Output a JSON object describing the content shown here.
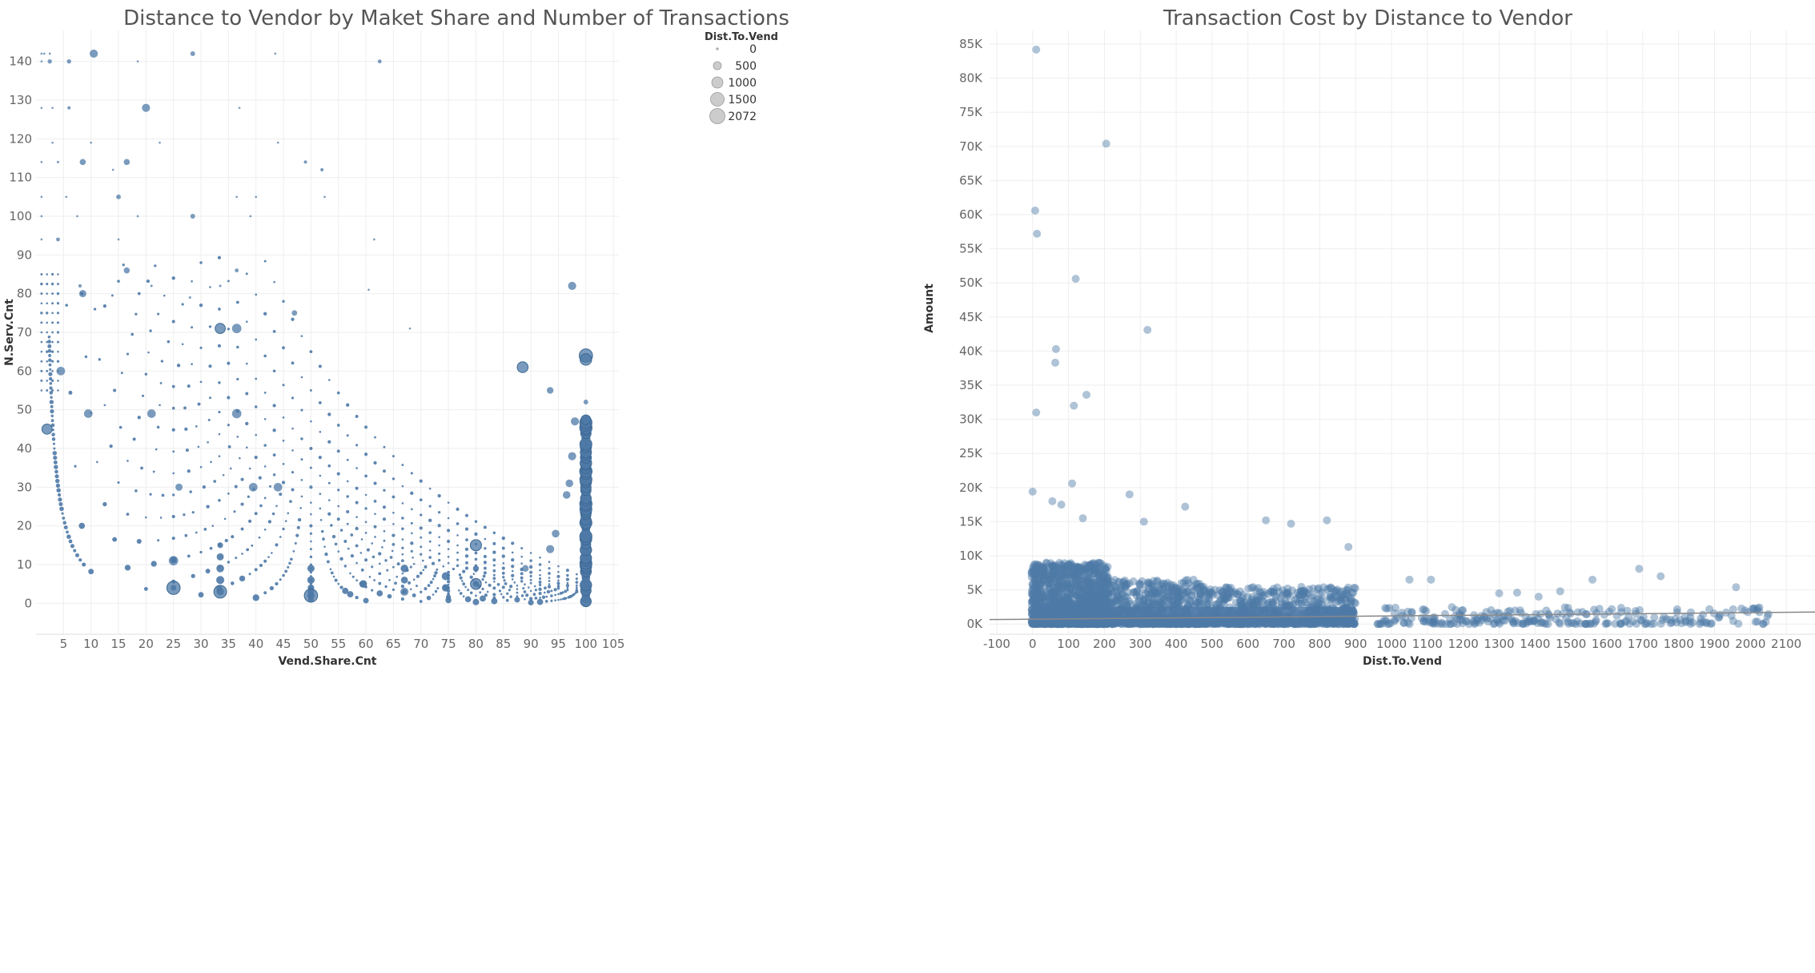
{
  "chart_data": [
    {
      "type": "scatter",
      "title": "Distance to Vendor by Maket Share and Number of Transactions",
      "xlabel": "Vend.Share.Cnt",
      "ylabel": "N.Serv.Cnt",
      "xlim": [
        0,
        106
      ],
      "ylim": [
        -8,
        148
      ],
      "xticks": [
        5,
        10,
        15,
        20,
        25,
        30,
        35,
        40,
        45,
        50,
        55,
        60,
        65,
        70,
        75,
        80,
        85,
        90,
        95,
        100,
        105
      ],
      "yticks": [
        0,
        10,
        20,
        30,
        40,
        50,
        60,
        70,
        80,
        90,
        100,
        110,
        120,
        130,
        140
      ],
      "grid": true,
      "color": "#4e79a7",
      "size_legend": {
        "title": "Dist.To.Vend",
        "placement": "top-right",
        "entries": [
          {
            "label": "0",
            "value": 0
          },
          {
            "label": "500",
            "value": 500
          },
          {
            "label": "1000",
            "value": 1000
          },
          {
            "label": "1500",
            "value": 1500
          },
          {
            "label": "2072",
            "value": 2072
          }
        ]
      },
      "points": [
        {
          "x": 1,
          "y": 142,
          "s": 60
        },
        {
          "x": 1.5,
          "y": 142,
          "s": 60
        },
        {
          "x": 2.5,
          "y": 142,
          "s": 60
        },
        {
          "x": 10.5,
          "y": 142,
          "s": 900
        },
        {
          "x": 28.5,
          "y": 142,
          "s": 300
        },
        {
          "x": 43.5,
          "y": 142,
          "s": 60
        },
        {
          "x": 1,
          "y": 140,
          "s": 60
        },
        {
          "x": 2.5,
          "y": 140,
          "s": 250
        },
        {
          "x": 6,
          "y": 140,
          "s": 250
        },
        {
          "x": 18.5,
          "y": 140,
          "s": 60
        },
        {
          "x": 62.5,
          "y": 140,
          "s": 200
        },
        {
          "x": 1,
          "y": 128,
          "s": 60
        },
        {
          "x": 3,
          "y": 128,
          "s": 60
        },
        {
          "x": 6,
          "y": 128,
          "s": 150
        },
        {
          "x": 20,
          "y": 128,
          "s": 900
        },
        {
          "x": 37,
          "y": 128,
          "s": 60
        },
        {
          "x": 3,
          "y": 119,
          "s": 60
        },
        {
          "x": 10,
          "y": 119,
          "s": 60
        },
        {
          "x": 22.5,
          "y": 119,
          "s": 60
        },
        {
          "x": 44,
          "y": 119,
          "s": 60
        },
        {
          "x": 1,
          "y": 114,
          "s": 60
        },
        {
          "x": 4,
          "y": 114,
          "s": 80
        },
        {
          "x": 8.5,
          "y": 114,
          "s": 500
        },
        {
          "x": 16.5,
          "y": 114,
          "s": 500
        },
        {
          "x": 49,
          "y": 114,
          "s": 150
        },
        {
          "x": 14,
          "y": 112,
          "s": 60
        },
        {
          "x": 52,
          "y": 112,
          "s": 150
        },
        {
          "x": 1,
          "y": 105,
          "s": 60
        },
        {
          "x": 5.5,
          "y": 105,
          "s": 60
        },
        {
          "x": 15,
          "y": 105,
          "s": 300
        },
        {
          "x": 36.5,
          "y": 105,
          "s": 60
        },
        {
          "x": 40,
          "y": 105,
          "s": 60
        },
        {
          "x": 52.5,
          "y": 105,
          "s": 60
        },
        {
          "x": 1,
          "y": 100,
          "s": 60
        },
        {
          "x": 7.5,
          "y": 100,
          "s": 60
        },
        {
          "x": 18.5,
          "y": 100,
          "s": 60
        },
        {
          "x": 28.5,
          "y": 100,
          "s": 300
        },
        {
          "x": 39,
          "y": 100,
          "s": 60
        },
        {
          "x": 1,
          "y": 94,
          "s": 60
        },
        {
          "x": 4,
          "y": 94,
          "s": 200
        },
        {
          "x": 15,
          "y": 94,
          "s": 60
        },
        {
          "x": 61.5,
          "y": 94,
          "s": 60
        },
        {
          "x": 16.5,
          "y": 86,
          "s": 500
        },
        {
          "x": 36.5,
          "y": 86,
          "s": 200
        },
        {
          "x": 8,
          "y": 82,
          "s": 150
        },
        {
          "x": 21,
          "y": 82,
          "s": 80
        },
        {
          "x": 33.5,
          "y": 82,
          "s": 80
        },
        {
          "x": 97.5,
          "y": 82,
          "s": 900
        },
        {
          "x": 60.5,
          "y": 81,
          "s": 60
        },
        {
          "x": 8.5,
          "y": 80,
          "s": 700
        },
        {
          "x": 28,
          "y": 79,
          "s": 80
        },
        {
          "x": 47,
          "y": 75,
          "s": 400
        },
        {
          "x": 33.5,
          "y": 71,
          "s": 1400
        },
        {
          "x": 36.5,
          "y": 71,
          "s": 1200
        },
        {
          "x": 68,
          "y": 71,
          "s": 60
        },
        {
          "x": 88.5,
          "y": 61,
          "s": 1600
        },
        {
          "x": 100,
          "y": 64,
          "s": 2400
        },
        {
          "x": 100,
          "y": 63,
          "s": 1800
        },
        {
          "x": 93.5,
          "y": 55,
          "s": 600
        },
        {
          "x": 100,
          "y": 52,
          "s": 300
        },
        {
          "x": 2,
          "y": 45,
          "s": 1400
        },
        {
          "x": 4.5,
          "y": 60,
          "s": 1000
        },
        {
          "x": 9.5,
          "y": 49,
          "s": 1000
        },
        {
          "x": 21,
          "y": 49,
          "s": 1000
        },
        {
          "x": 36.5,
          "y": 49,
          "s": 1200
        },
        {
          "x": 26,
          "y": 30,
          "s": 700
        },
        {
          "x": 39.5,
          "y": 30,
          "s": 1000
        },
        {
          "x": 44,
          "y": 30,
          "s": 1000
        },
        {
          "x": 25,
          "y": 11,
          "s": 1200
        },
        {
          "x": 25,
          "y": 4,
          "s": 2400
        },
        {
          "x": 33.5,
          "y": 3,
          "s": 2200
        },
        {
          "x": 50,
          "y": 2,
          "s": 2400
        },
        {
          "x": 59.5,
          "y": 5,
          "s": 800
        },
        {
          "x": 67,
          "y": 3,
          "s": 900
        },
        {
          "x": 74.5,
          "y": 4,
          "s": 800
        },
        {
          "x": 80,
          "y": 5,
          "s": 1600
        },
        {
          "x": 80,
          "y": 15,
          "s": 1700
        },
        {
          "x": 89,
          "y": 9,
          "s": 600
        },
        {
          "x": 97.5,
          "y": 38,
          "s": 900
        },
        {
          "x": 98,
          "y": 47,
          "s": 900
        },
        {
          "x": 97,
          "y": 31,
          "s": 800
        },
        {
          "x": 96.5,
          "y": 28,
          "s": 800
        },
        {
          "x": 94.5,
          "y": 18,
          "s": 800
        },
        {
          "x": 93.5,
          "y": 14,
          "s": 900
        }
      ],
      "arc_counts": [
        1,
        2,
        3,
        4,
        5,
        6,
        7,
        8,
        9,
        10,
        12,
        14,
        16,
        18,
        20,
        23,
        26,
        30,
        35,
        40,
        47,
        55,
        65
      ]
    },
    {
      "type": "scatter",
      "title": "Transaction Cost by Distance to Vendor",
      "xlabel": "Dist.To.Vend",
      "ylabel": "Amount",
      "xlim": [
        -120,
        2180
      ],
      "ylim": [
        -1500,
        87000
      ],
      "xticks": [
        -100,
        0,
        100,
        200,
        300,
        400,
        500,
        600,
        700,
        800,
        900,
        1000,
        1100,
        1200,
        1300,
        1400,
        1500,
        1600,
        1700,
        1800,
        1900,
        2000,
        2100
      ],
      "yticks": [
        0,
        5000,
        10000,
        15000,
        20000,
        25000,
        30000,
        35000,
        40000,
        45000,
        50000,
        55000,
        60000,
        65000,
        70000,
        75000,
        80000,
        85000
      ],
      "ytick_labels": [
        "0K",
        "5K",
        "10K",
        "15K",
        "20K",
        "25K",
        "30K",
        "35K",
        "40K",
        "45K",
        "50K",
        "55K",
        "60K",
        "65K",
        "70K",
        "75K",
        "80K",
        "85K"
      ],
      "grid": true,
      "color": "#4e79a7",
      "trend_line": {
        "x": [
          -120,
          2180
        ],
        "y": [
          650,
          1750
        ],
        "color": "#888888"
      },
      "outliers": [
        {
          "x": 10,
          "y": 84200
        },
        {
          "x": 205,
          "y": 70400
        },
        {
          "x": 7,
          "y": 60600
        },
        {
          "x": 12,
          "y": 57200
        },
        {
          "x": 120,
          "y": 50600
        },
        {
          "x": 320,
          "y": 43100
        },
        {
          "x": 65,
          "y": 40300
        },
        {
          "x": 63,
          "y": 38300
        },
        {
          "x": 150,
          "y": 33600
        },
        {
          "x": 115,
          "y": 32000
        },
        {
          "x": 10,
          "y": 31000
        },
        {
          "x": 0,
          "y": 19400
        },
        {
          "x": 110,
          "y": 20600
        },
        {
          "x": 270,
          "y": 19000
        },
        {
          "x": 425,
          "y": 17200
        },
        {
          "x": 55,
          "y": 18000
        },
        {
          "x": 80,
          "y": 17500
        },
        {
          "x": 140,
          "y": 15500
        },
        {
          "x": 310,
          "y": 15000
        },
        {
          "x": 650,
          "y": 15200
        },
        {
          "x": 720,
          "y": 14700
        },
        {
          "x": 820,
          "y": 15200
        },
        {
          "x": 880,
          "y": 11300
        },
        {
          "x": 1050,
          "y": 6500
        },
        {
          "x": 1110,
          "y": 6500
        },
        {
          "x": 1350,
          "y": 4600
        },
        {
          "x": 1410,
          "y": 4000
        },
        {
          "x": 1470,
          "y": 4800
        },
        {
          "x": 1560,
          "y": 6500
        },
        {
          "x": 1690,
          "y": 8100
        },
        {
          "x": 1750,
          "y": 7000
        },
        {
          "x": 1960,
          "y": 5400
        },
        {
          "x": 2010,
          "y": 2300
        },
        {
          "x": 1230,
          "y": 1300
        },
        {
          "x": 1300,
          "y": 4500
        }
      ],
      "dense_bands": [
        {
          "x0": -3,
          "x1": 210,
          "ymax": 9000,
          "n": 1400
        },
        {
          "x0": 210,
          "x1": 480,
          "ymax": 6500,
          "n": 700
        },
        {
          "x0": 480,
          "x1": 900,
          "ymax": 5500,
          "n": 800
        },
        {
          "x0": 950,
          "x1": 2060,
          "ymax": 2500,
          "n": 260
        }
      ]
    }
  ]
}
